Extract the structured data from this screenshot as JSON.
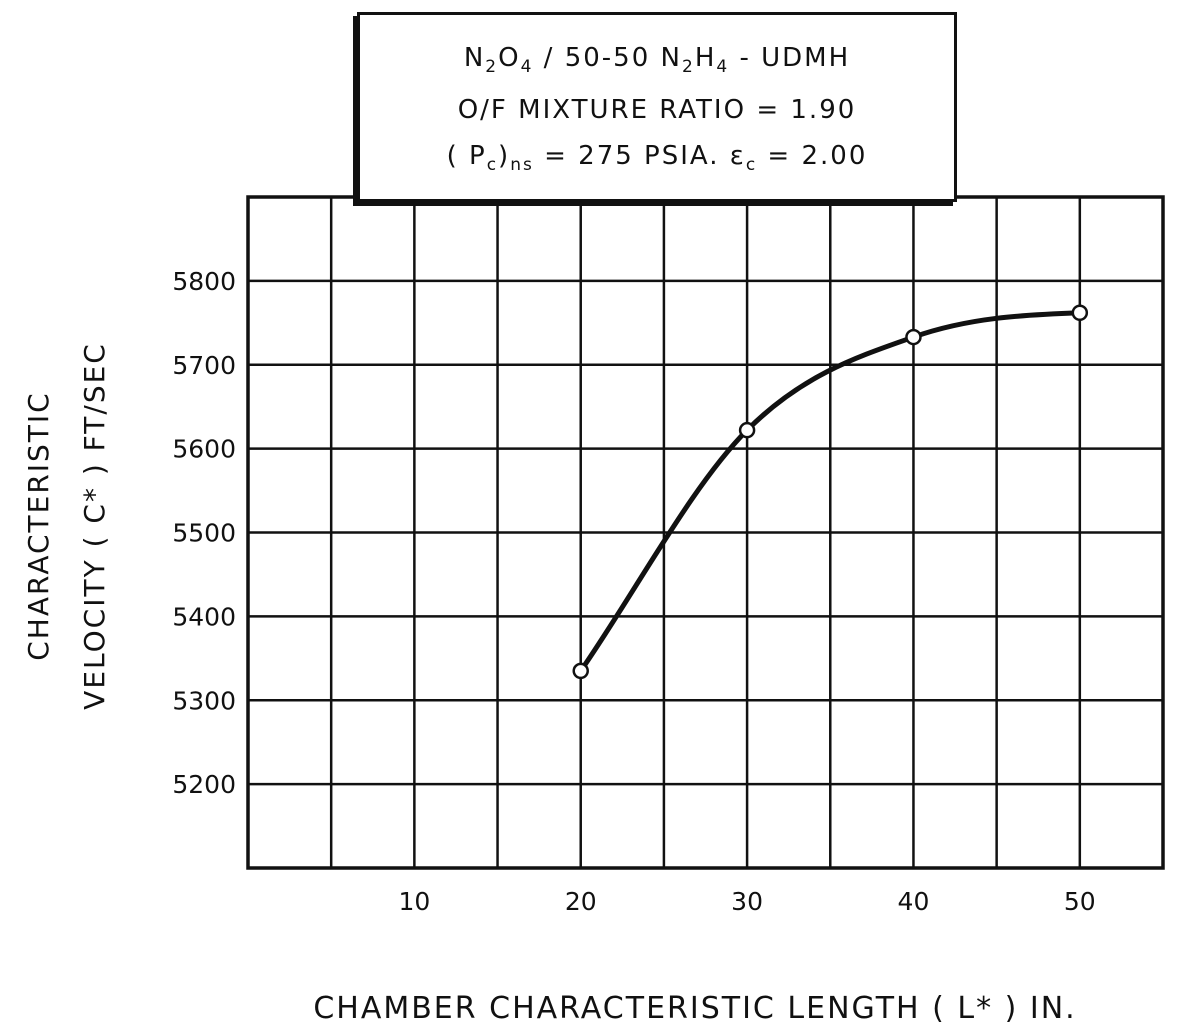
{
  "chart_data": {
    "type": "line",
    "title_lines": [
      {
        "parts": [
          [
            "N",
            ""
          ],
          [
            "2",
            "sub"
          ],
          [
            "O",
            ""
          ],
          [
            "4",
            "sub"
          ],
          [
            " / 50-50 N",
            ""
          ],
          [
            "2",
            "sub"
          ],
          [
            "H",
            ""
          ],
          [
            "4",
            "sub"
          ],
          [
            " - UDMH",
            ""
          ]
        ]
      },
      {
        "parts": [
          [
            "O/F MIXTURE RATIO = 1.90",
            ""
          ]
        ]
      },
      {
        "parts": [
          [
            "( P",
            ""
          ],
          [
            "c",
            "sub"
          ],
          [
            ")",
            ""
          ],
          [
            "ns",
            "sub"
          ],
          [
            " = 275 PSIA. ε",
            ""
          ],
          [
            "c",
            "sub"
          ],
          [
            " = 2.00",
            ""
          ]
        ]
      }
    ],
    "xlabel": "CHAMBER CHARACTERISTIC LENGTH ( L* ) IN.",
    "ylabel_line1": "CHARACTERISTIC",
    "ylabel_line2": "VELOCITY ( C* ) FT/SEC",
    "xlim": [
      0,
      55
    ],
    "ylim": [
      5100,
      5900
    ],
    "x_ticks": [
      10,
      20,
      30,
      40,
      50
    ],
    "y_ticks": [
      5200,
      5300,
      5400,
      5500,
      5600,
      5700,
      5800
    ],
    "grid": true,
    "series": [
      {
        "x": [
          20,
          30,
          40,
          50
        ],
        "y": [
          5335,
          5622,
          5733,
          5762
        ],
        "marker": "open-circle"
      }
    ]
  }
}
